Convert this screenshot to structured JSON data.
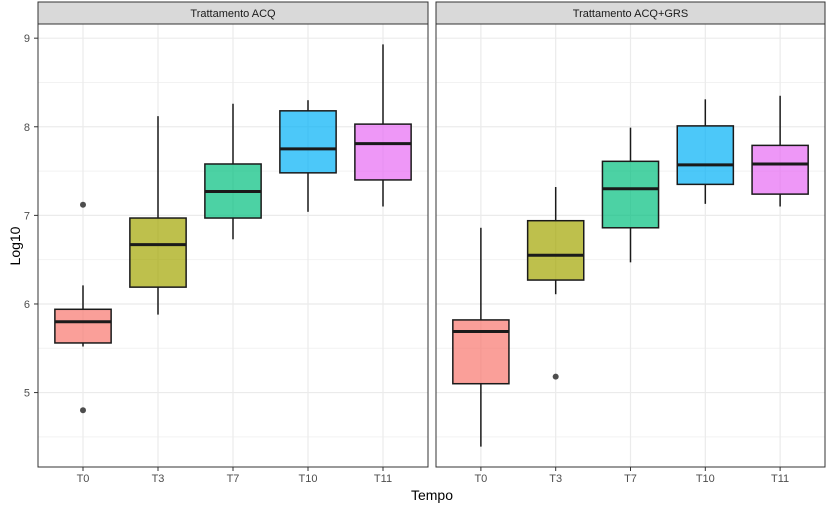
{
  "chart_data": {
    "type": "boxplot",
    "xlabel": "Tempo",
    "ylabel": "Log10",
    "ylim": [
      4.16,
      9.16
    ],
    "yticks": [
      5,
      6,
      7,
      8,
      9
    ],
    "grid": true,
    "categories": [
      "T0",
      "T3",
      "T7",
      "T10",
      "T11"
    ],
    "colors": [
      "#F8766D",
      "#A3A500",
      "#00BF7D",
      "#00B0F6",
      "#E76BF3"
    ],
    "panels": [
      {
        "title": "Trattamento ACQ",
        "boxes": [
          {
            "category": "T0",
            "min": 5.52,
            "q1": 5.56,
            "median": 5.8,
            "q3": 5.94,
            "max": 6.21,
            "outliers": [
              7.12,
              4.8
            ]
          },
          {
            "category": "T3",
            "min": 5.88,
            "q1": 6.19,
            "median": 6.67,
            "q3": 6.97,
            "max": 8.12,
            "outliers": []
          },
          {
            "category": "T7",
            "min": 6.73,
            "q1": 6.97,
            "median": 7.27,
            "q3": 7.58,
            "max": 8.26,
            "outliers": []
          },
          {
            "category": "T10",
            "min": 7.04,
            "q1": 7.48,
            "median": 7.75,
            "q3": 8.18,
            "max": 8.3,
            "outliers": []
          },
          {
            "category": "T11",
            "min": 7.1,
            "q1": 7.4,
            "median": 7.81,
            "q3": 8.03,
            "max": 8.93,
            "outliers": []
          }
        ]
      },
      {
        "title": "Trattamento ACQ+GRS",
        "boxes": [
          {
            "category": "T0",
            "min": 4.39,
            "q1": 5.1,
            "median": 5.69,
            "q3": 5.82,
            "max": 6.86,
            "outliers": []
          },
          {
            "category": "T3",
            "min": 6.11,
            "q1": 6.27,
            "median": 6.55,
            "q3": 6.94,
            "max": 7.32,
            "outliers": [
              5.18
            ]
          },
          {
            "category": "T7",
            "min": 6.47,
            "q1": 6.86,
            "median": 7.3,
            "q3": 7.61,
            "max": 7.99,
            "outliers": []
          },
          {
            "category": "T10",
            "min": 7.13,
            "q1": 7.35,
            "median": 7.57,
            "q3": 8.01,
            "max": 8.31,
            "outliers": []
          },
          {
            "category": "T11",
            "min": 7.1,
            "q1": 7.24,
            "median": 7.58,
            "q3": 7.79,
            "max": 8.35,
            "outliers": []
          }
        ]
      }
    ]
  }
}
